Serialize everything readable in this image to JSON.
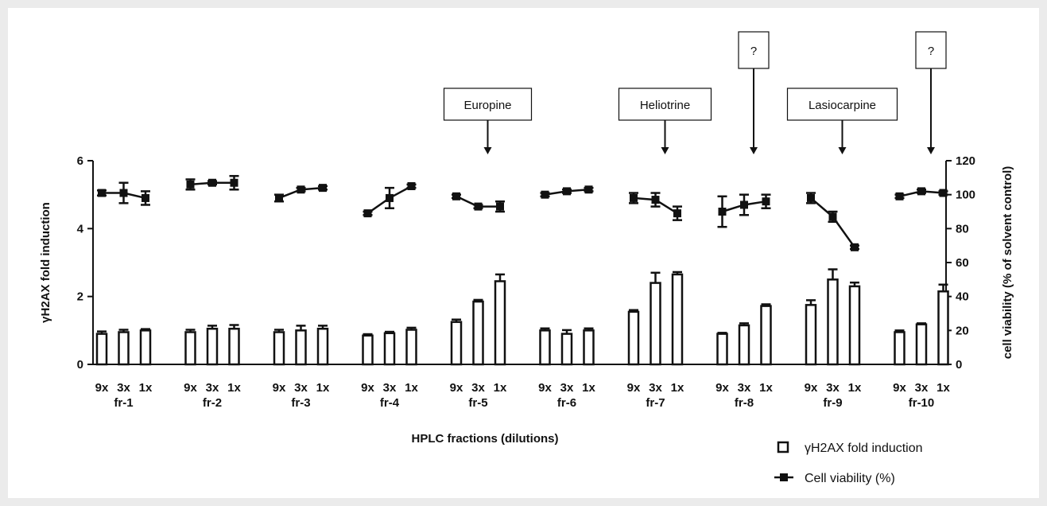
{
  "chart_data": {
    "type": "bar",
    "xlabel": "HPLC fractions (dilutions)",
    "ylabel_left": "γH2AX fold induction",
    "ylabel_right": "cell viability (% of solvent control)",
    "ylim_left": [
      0,
      6
    ],
    "ylim_right": [
      0,
      120
    ],
    "yticks_left": [
      "0",
      "2",
      "4",
      "6"
    ],
    "yticks_right": [
      "0",
      "20",
      "40",
      "60",
      "80",
      "100",
      "120"
    ],
    "dilutions": [
      "9x",
      "3x",
      "1x"
    ],
    "fractions": [
      "fr-1",
      "fr-2",
      "fr-3",
      "fr-4",
      "fr-5",
      "fr-6",
      "fr-7",
      "fr-8",
      "fr-9",
      "fr-10"
    ],
    "series": [
      {
        "name": "γH2AX fold induction",
        "kind": "bar",
        "axis": "left",
        "values": [
          [
            0.9,
            0.95,
            1.0
          ],
          [
            0.95,
            1.05,
            1.05
          ],
          [
            0.95,
            1.0,
            1.05
          ],
          [
            0.85,
            0.92,
            1.02
          ],
          [
            1.25,
            1.85,
            2.45
          ],
          [
            1.0,
            0.9,
            1.0
          ],
          [
            1.55,
            2.4,
            2.65
          ],
          [
            0.9,
            1.15,
            1.72
          ],
          [
            1.75,
            2.5,
            2.3
          ],
          [
            0.95,
            1.18,
            2.15
          ]
        ],
        "errors": [
          [
            0.07,
            0.07,
            0.04
          ],
          [
            0.07,
            0.09,
            0.11
          ],
          [
            0.07,
            0.14,
            0.09
          ],
          [
            0.04,
            0.04,
            0.06
          ],
          [
            0.07,
            0.05,
            0.2
          ],
          [
            0.06,
            0.11,
            0.06
          ],
          [
            0.05,
            0.3,
            0.07
          ],
          [
            0.03,
            0.06,
            0.05
          ],
          [
            0.14,
            0.3,
            0.11
          ],
          [
            0.05,
            0.03,
            0.2
          ]
        ]
      },
      {
        "name": "Cell viability (%)",
        "kind": "line",
        "axis": "right",
        "values": [
          [
            101,
            101,
            98
          ],
          [
            106,
            107,
            107
          ],
          [
            98,
            103,
            104
          ],
          [
            89,
            98,
            105
          ],
          [
            99,
            93,
            93
          ],
          [
            100,
            102,
            103
          ],
          [
            98,
            97,
            89
          ],
          [
            90,
            94,
            96
          ],
          [
            98,
            87,
            69
          ],
          [
            99,
            102,
            101
          ]
        ],
        "errors": [
          [
            1.5,
            6,
            4
          ],
          [
            3,
            1,
            4
          ],
          [
            2,
            1,
            1
          ],
          [
            1,
            6,
            1
          ],
          [
            1,
            1,
            3
          ],
          [
            1,
            1,
            1
          ],
          [
            3,
            4,
            4
          ],
          [
            9,
            6,
            4
          ],
          [
            3,
            3,
            1
          ],
          [
            1,
            1,
            1
          ]
        ]
      }
    ],
    "annotations": [
      {
        "text": "Europine",
        "fraction": "fr-5"
      },
      {
        "text": "Heliotrine",
        "fraction": "fr-7"
      },
      {
        "text": "?",
        "fraction": "fr-8"
      },
      {
        "text": "Lasiocarpine",
        "fraction": "fr-9"
      },
      {
        "text": "?",
        "fraction": "fr-10"
      }
    ],
    "legend": [
      "γH2AX fold induction",
      "Cell viability (%)"
    ],
    "legend_position": "bottom-right"
  }
}
